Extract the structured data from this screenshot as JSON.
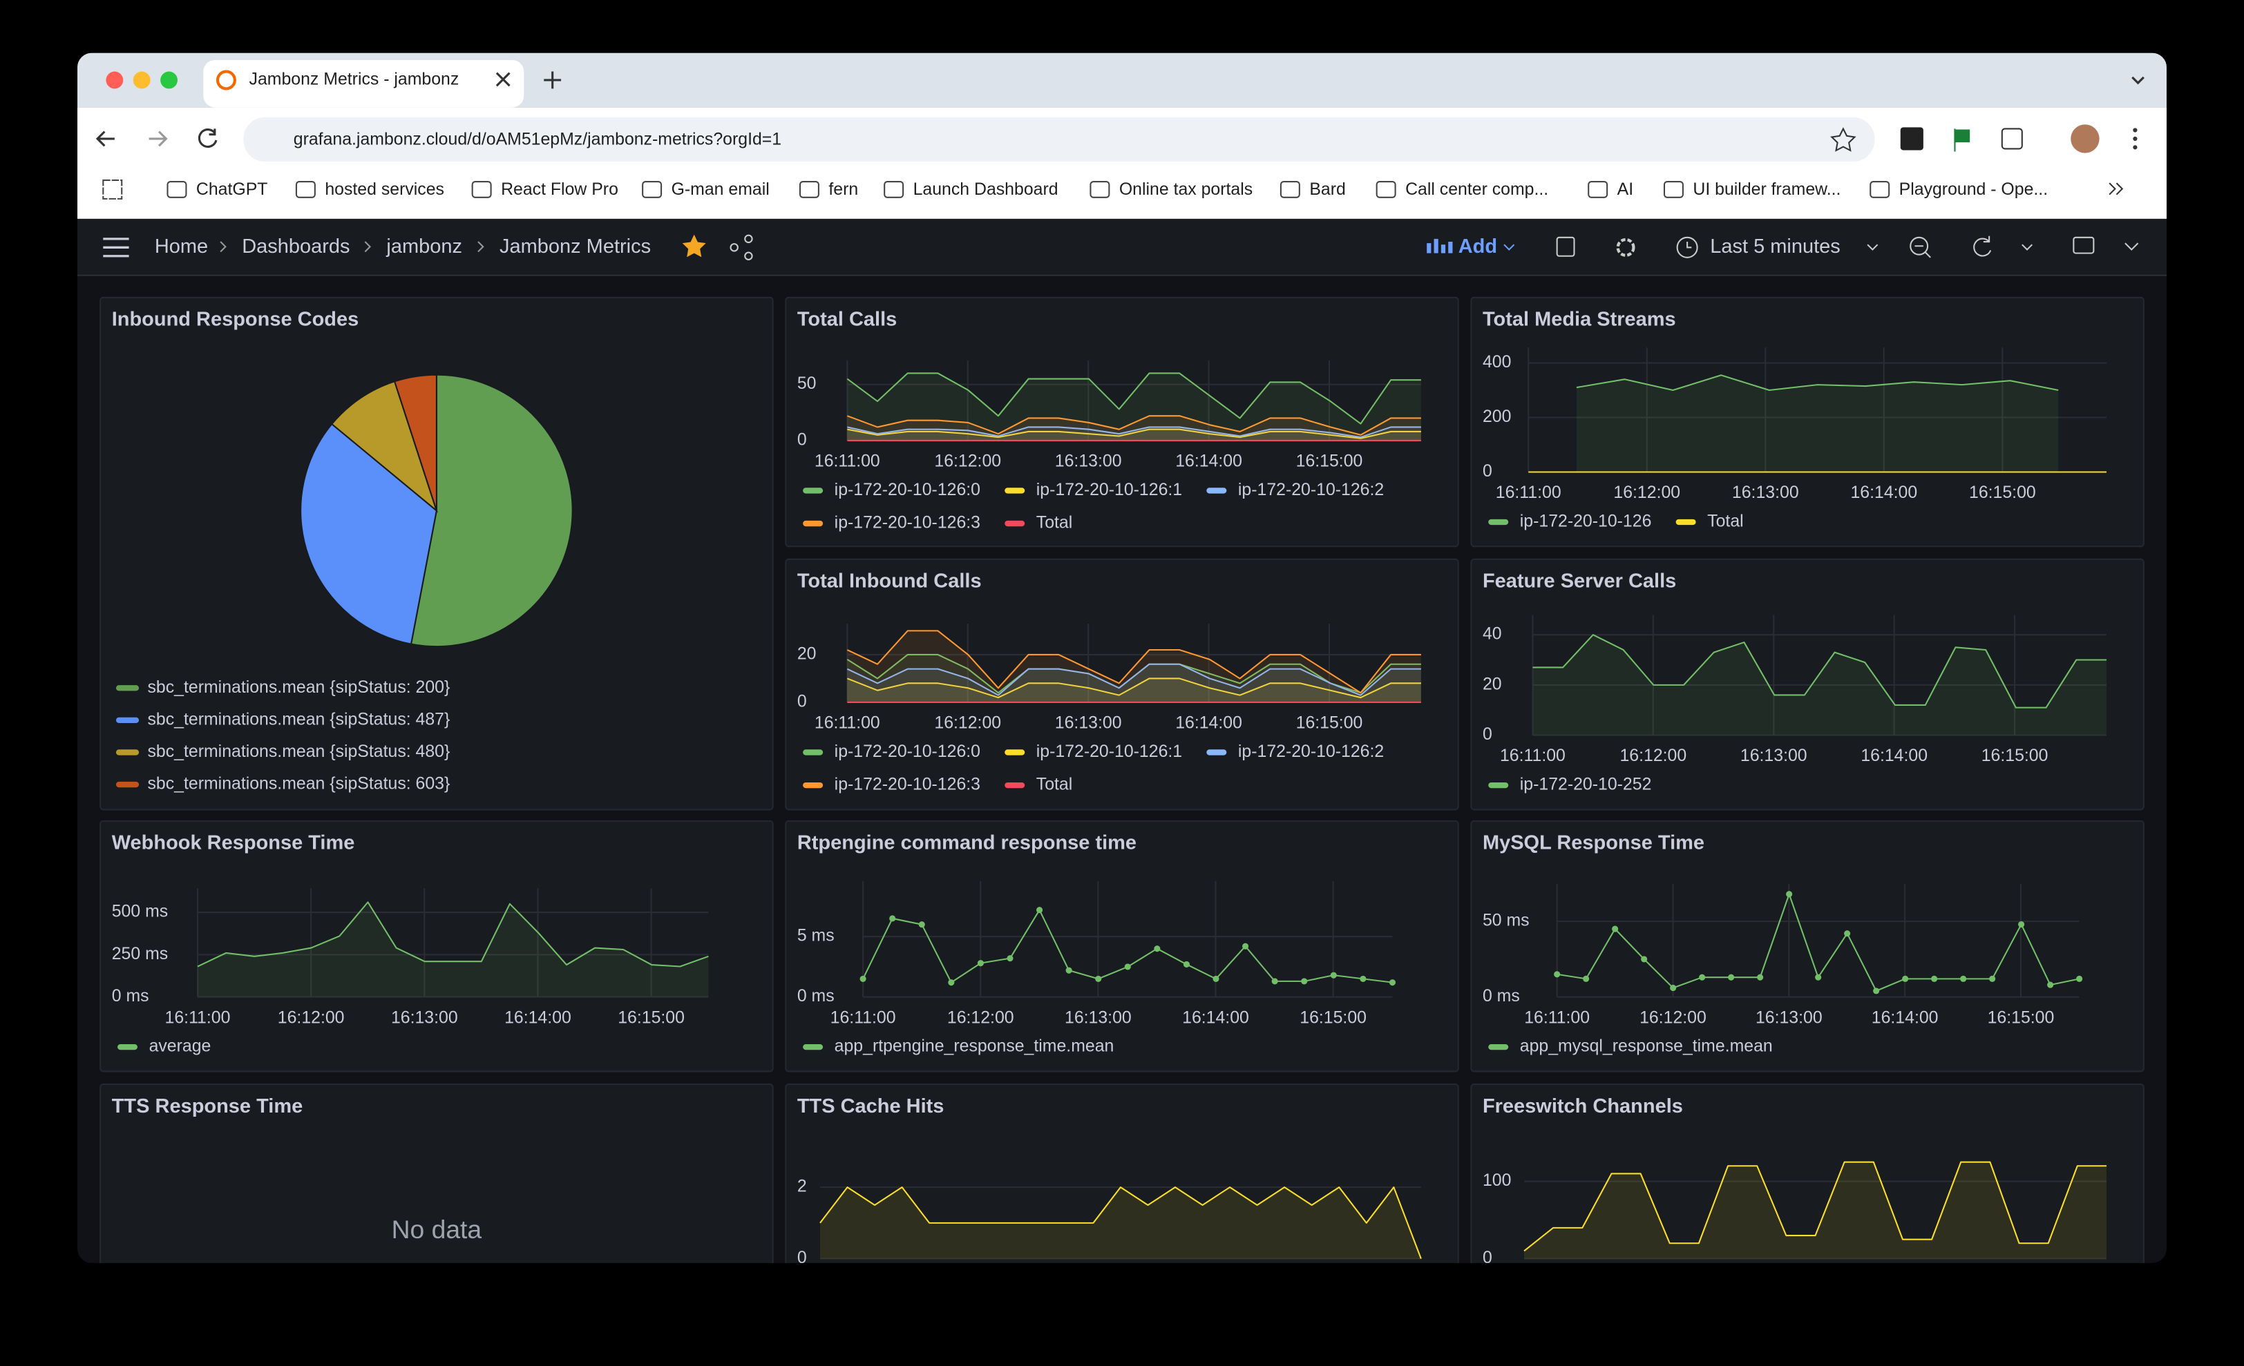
{
  "browser": {
    "tab_title": "Jambonz Metrics - jambonz",
    "url": "grafana.jambonz.cloud/d/oAM51epMz/jambonz-metrics?orgId=1",
    "bookmarks": [
      "ChatGPT",
      "hosted services",
      "React Flow Pro",
      "G-man email",
      "fern",
      "Launch Dashboard",
      "Online tax portals",
      "Bard",
      "Call center comp...",
      "AI",
      "UI builder framew...",
      "Playground - Ope..."
    ]
  },
  "toolbar": {
    "breadcrumbs": [
      "Home",
      "Dashboards",
      "jambonz",
      "Jambonz Metrics"
    ],
    "add": "Add",
    "time_range": "Last 5 minutes"
  },
  "panels": [
    {
      "title": "Inbound Response Codes",
      "type": "pie",
      "categories": [
        "sbc_terminations.mean {sipStatus: 200}",
        "sbc_terminations.mean {sipStatus: 487}",
        "sbc_terminations.mean {sipStatus: 480}",
        "sbc_terminations.mean {sipStatus: 603}"
      ],
      "values": [
        53,
        33,
        9,
        5
      ],
      "colors": [
        "#629e51",
        "#5b8ff9",
        "#b89a2a",
        "#c4521c"
      ]
    },
    {
      "title": "Total Calls",
      "type": "line",
      "fill": true,
      "x_ticks": [
        "16:11:00",
        "16:12:00",
        "16:13:00",
        "16:14:00",
        "16:15:00"
      ],
      "ylim": [
        0,
        65
      ],
      "yticks": [
        0,
        50
      ],
      "series": [
        {
          "name": "ip-172-20-10-126:0",
          "color": "#73bf69",
          "values": [
            55,
            35,
            60,
            60,
            45,
            22,
            55,
            55,
            55,
            28,
            60,
            60,
            40,
            20,
            52,
            52,
            35,
            15,
            54,
            54
          ]
        },
        {
          "name": "ip-172-20-10-126:1",
          "color": "#fade2a",
          "values": [
            10,
            5,
            8,
            8,
            6,
            3,
            8,
            8,
            6,
            4,
            10,
            10,
            6,
            3,
            8,
            8,
            5,
            2,
            8,
            8
          ]
        },
        {
          "name": "ip-172-20-10-126:2",
          "color": "#8ab8ff",
          "values": [
            12,
            6,
            10,
            10,
            9,
            4,
            12,
            12,
            10,
            6,
            12,
            12,
            8,
            4,
            10,
            10,
            7,
            3,
            12,
            12
          ]
        },
        {
          "name": "ip-172-20-10-126:3",
          "color": "#ff9830",
          "values": [
            22,
            12,
            18,
            18,
            16,
            6,
            20,
            20,
            16,
            10,
            22,
            22,
            14,
            8,
            20,
            20,
            12,
            5,
            20,
            20
          ]
        },
        {
          "name": "Total",
          "color": "#f2495c",
          "values": [
            0,
            0,
            0,
            0,
            0,
            0,
            0,
            0,
            0,
            0,
            0,
            0,
            0,
            0,
            0,
            0,
            0,
            0,
            0,
            0
          ]
        }
      ]
    },
    {
      "title": "Total Media Streams",
      "type": "line",
      "fill": true,
      "x_ticks": [
        "16:11:00",
        "16:12:00",
        "16:13:00",
        "16:14:00",
        "16:15:00"
      ],
      "ylim": [
        0,
        430
      ],
      "yticks": [
        0,
        200,
        400
      ],
      "series": [
        {
          "name": "ip-172-20-10-126",
          "color": "#73bf69",
          "values": [
            null,
            310,
            340,
            300,
            355,
            300,
            320,
            315,
            330,
            320,
            335,
            300,
            null
          ]
        },
        {
          "name": "Total",
          "color": "#fade2a",
          "values": [
            0,
            0,
            0,
            0,
            0,
            0,
            0,
            0,
            0,
            0,
            0,
            0,
            0
          ]
        }
      ]
    },
    {
      "title": "Total Inbound Calls",
      "type": "line",
      "fill": true,
      "x_ticks": [
        "16:11:00",
        "16:12:00",
        "16:13:00",
        "16:14:00",
        "16:15:00"
      ],
      "ylim": [
        0,
        30
      ],
      "yticks": [
        0,
        20
      ],
      "series": [
        {
          "name": "ip-172-20-10-126:0",
          "color": "#73bf69",
          "values": [
            18,
            10,
            20,
            20,
            14,
            4,
            14,
            14,
            12,
            6,
            16,
            16,
            12,
            8,
            16,
            16,
            8,
            4,
            16,
            16
          ]
        },
        {
          "name": "ip-172-20-10-126:1",
          "color": "#fade2a",
          "values": [
            10,
            5,
            8,
            8,
            6,
            2,
            8,
            8,
            6,
            3,
            10,
            10,
            6,
            3,
            8,
            8,
            5,
            2,
            8,
            8
          ]
        },
        {
          "name": "ip-172-20-10-126:2",
          "color": "#8ab8ff",
          "values": [
            14,
            8,
            14,
            14,
            10,
            3,
            14,
            14,
            12,
            6,
            16,
            16,
            10,
            6,
            14,
            14,
            8,
            3,
            14,
            14
          ]
        },
        {
          "name": "ip-172-20-10-126:3",
          "color": "#ff9830",
          "values": [
            22,
            16,
            30,
            30,
            20,
            6,
            20,
            20,
            14,
            8,
            22,
            22,
            18,
            10,
            20,
            20,
            12,
            4,
            20,
            20
          ]
        },
        {
          "name": "Total",
          "color": "#f2495c",
          "values": [
            0,
            0,
            0,
            0,
            0,
            0,
            0,
            0,
            0,
            0,
            0,
            0,
            0,
            0,
            0,
            0,
            0,
            0,
            0,
            0
          ]
        }
      ]
    },
    {
      "title": "Feature Server Calls",
      "type": "line",
      "fill": true,
      "x_ticks": [
        "16:11:00",
        "16:12:00",
        "16:13:00",
        "16:14:00",
        "16:15:00"
      ],
      "ylim": [
        0,
        45
      ],
      "yticks": [
        0,
        20,
        40
      ],
      "series": [
        {
          "name": "ip-172-20-10-252",
          "color": "#73bf69",
          "values": [
            27,
            27,
            40,
            34,
            20,
            20,
            33,
            37,
            16,
            16,
            33,
            29,
            12,
            12,
            35,
            34,
            11,
            11,
            30,
            30
          ]
        }
      ]
    },
    {
      "title": "Webhook Response Time",
      "type": "line",
      "fill": true,
      "x_ticks": [
        "16:11:00",
        "16:12:00",
        "16:13:00",
        "16:14:00",
        "16:15:00"
      ],
      "ylim": [
        0,
        600
      ],
      "yticks": [
        {
          "value": 0,
          "label": "0 ms"
        },
        {
          "value": 250,
          "label": "250 ms"
        },
        {
          "value": 500,
          "label": "500 ms"
        }
      ],
      "series": [
        {
          "name": "average",
          "color": "#73bf69",
          "values": [
            180,
            260,
            240,
            260,
            290,
            360,
            560,
            290,
            210,
            210,
            210,
            550,
            380,
            190,
            290,
            280,
            190,
            180,
            240
          ]
        }
      ]
    },
    {
      "title": "Rtpengine command response time",
      "type": "line",
      "points": true,
      "x_ticks": [
        "16:11:00",
        "16:12:00",
        "16:13:00",
        "16:14:00",
        "16:15:00"
      ],
      "ylim": [
        0,
        9
      ],
      "yticks": [
        {
          "value": 0,
          "label": "0 ms"
        },
        {
          "value": 5,
          "label": "5 ms"
        }
      ],
      "series": [
        {
          "name": "app_rtpengine_response_time.mean",
          "color": "#73bf69",
          "values": [
            1.5,
            6.5,
            6,
            1.2,
            2.8,
            3.2,
            7.2,
            2.2,
            1.5,
            2.5,
            4,
            2.7,
            1.5,
            4.2,
            1.3,
            1.3,
            1.8,
            1.5,
            1.2
          ]
        }
      ]
    },
    {
      "title": "MySQL Response Time",
      "type": "line",
      "points": true,
      "x_ticks": [
        "16:11:00",
        "16:12:00",
        "16:13:00",
        "16:14:00",
        "16:15:00"
      ],
      "ylim": [
        0,
        70
      ],
      "yticks": [
        {
          "value": 0,
          "label": "0 ms"
        },
        {
          "value": 50,
          "label": "50 ms"
        }
      ],
      "series": [
        {
          "name": "app_mysql_response_time.mean",
          "color": "#73bf69",
          "values": [
            15,
            12,
            45,
            25,
            6,
            13,
            13,
            13,
            68,
            13,
            42,
            4,
            12,
            12,
            12,
            12,
            48,
            8,
            12
          ]
        }
      ]
    },
    {
      "title": "TTS Response Time",
      "type": "text",
      "message": "No data"
    },
    {
      "title": "TTS Cache Hits",
      "type": "line",
      "fill": true,
      "ylim": [
        0,
        2.6
      ],
      "yticks": [
        0,
        2
      ],
      "color": "#fade2a",
      "values": [
        1,
        2,
        1.5,
        2,
        1,
        1,
        1,
        1,
        1,
        1,
        1,
        2,
        1.5,
        2,
        1.5,
        2,
        1.5,
        2,
        1.5,
        2,
        1,
        2,
        0
      ]
    },
    {
      "title": "Freeswitch Channels",
      "type": "line",
      "fill": true,
      "ylim": [
        0,
        135
      ],
      "yticks": [
        0,
        100
      ],
      "color": "#fade2a",
      "values": [
        10,
        40,
        40,
        110,
        110,
        20,
        20,
        120,
        120,
        30,
        30,
        125,
        125,
        25,
        25,
        125,
        125,
        20,
        20,
        120,
        120
      ]
    }
  ]
}
